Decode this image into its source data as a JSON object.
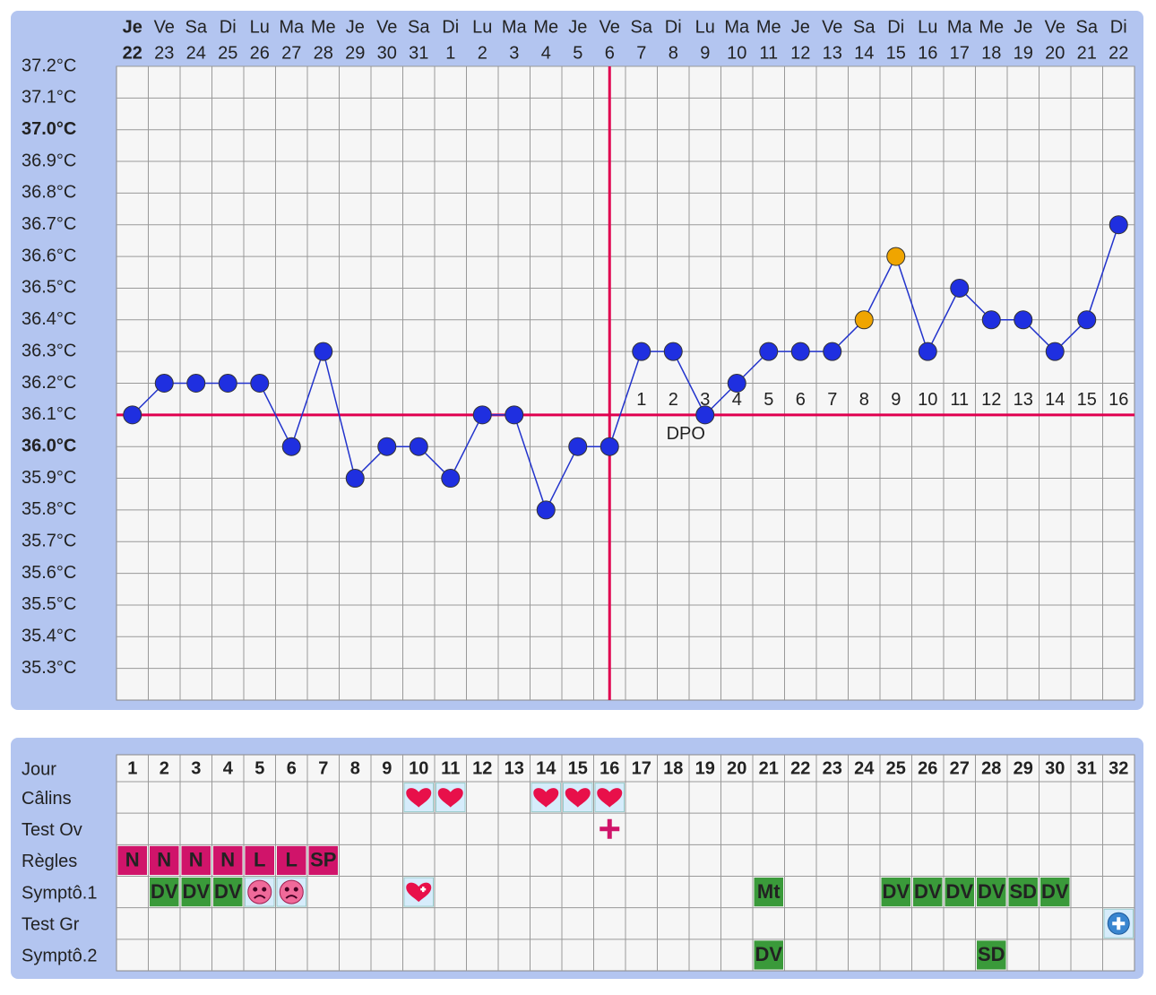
{
  "chart_data": {
    "type": "line",
    "weekdays": [
      "Je",
      "Ve",
      "Sa",
      "Di",
      "Lu",
      "Ma",
      "Me",
      "Je",
      "Ve",
      "Sa",
      "Di",
      "Lu",
      "Ma",
      "Me",
      "Je",
      "Ve",
      "Sa",
      "Di",
      "Lu",
      "Ma",
      "Me",
      "Je",
      "Ve",
      "Sa",
      "Di",
      "Lu",
      "Ma",
      "Me",
      "Je",
      "Ve",
      "Sa",
      "Di"
    ],
    "categories": [
      "22",
      "23",
      "24",
      "25",
      "26",
      "27",
      "28",
      "29",
      "30",
      "31",
      "1",
      "2",
      "3",
      "4",
      "5",
      "6",
      "7",
      "8",
      "9",
      "10",
      "11",
      "12",
      "13",
      "14",
      "15",
      "16",
      "17",
      "18",
      "19",
      "20",
      "21",
      "22"
    ],
    "category_colors": [
      "#e0004f",
      "#222",
      "#222",
      "#222",
      "#222",
      "#222",
      "#222",
      "#222",
      "#222",
      "#222",
      "#222",
      "#222",
      "#222",
      "#222",
      "#222",
      "#222",
      "#222",
      "#222",
      "#222",
      "#222",
      "#222",
      "#222",
      "#222",
      "#222",
      "#222",
      "#222",
      "#222",
      "#222",
      "#222",
      "#222",
      "#222",
      "#222"
    ],
    "series": [
      {
        "color": "#2233cc",
        "values": [
          36.1,
          36.2,
          36.2,
          36.2,
          36.2,
          36.0,
          36.3,
          35.9,
          36.0,
          36.0,
          35.9,
          36.1,
          36.1,
          35.8,
          36.0,
          36.0,
          36.3,
          36.3,
          36.1,
          36.2,
          36.3,
          36.3,
          36.3,
          36.4,
          36.6,
          36.3,
          36.5,
          36.4,
          36.4,
          36.3,
          36.4,
          36.7
        ],
        "marker_colors": [
          "#1f2fe0",
          "#1f2fe0",
          "#1f2fe0",
          "#1f2fe0",
          "#1f2fe0",
          "#1f2fe0",
          "#1f2fe0",
          "#1f2fe0",
          "#1f2fe0",
          "#1f2fe0",
          "#1f2fe0",
          "#1f2fe0",
          "#1f2fe0",
          "#1f2fe0",
          "#1f2fe0",
          "#1f2fe0",
          "#1f2fe0",
          "#1f2fe0",
          "#1f2fe0",
          "#1f2fe0",
          "#1f2fe0",
          "#1f2fe0",
          "#1f2fe0",
          "#f0a500",
          "#f0a500",
          "#1f2fe0",
          "#1f2fe0",
          "#1f2fe0",
          "#1f2fe0",
          "#1f2fe0",
          "#1f2fe0",
          "#1f2fe0"
        ]
      }
    ],
    "ylim": [
      35.2,
      37.2
    ],
    "yticks": [
      {
        "value": 35.3,
        "label": "35.3°C"
      },
      {
        "value": 35.4,
        "label": "35.4°C"
      },
      {
        "value": 35.5,
        "label": "35.5°C"
      },
      {
        "value": 35.6,
        "label": "35.6°C"
      },
      {
        "value": 35.7,
        "label": "35.7°C"
      },
      {
        "value": 35.8,
        "label": "35.8°C"
      },
      {
        "value": 35.9,
        "label": "35.9°C"
      },
      {
        "value": 36.0,
        "label": "36.0°C"
      },
      {
        "value": 36.1,
        "label": "36.1°C"
      },
      {
        "value": 36.2,
        "label": "36.2°C"
      },
      {
        "value": 36.3,
        "label": "36.3°C"
      },
      {
        "value": 36.4,
        "label": "36.4°C"
      },
      {
        "value": 36.5,
        "label": "36.5°C"
      },
      {
        "value": 36.6,
        "label": "36.6°C"
      },
      {
        "value": 36.7,
        "label": "36.7°C"
      },
      {
        "value": 36.8,
        "label": "36.8°C"
      },
      {
        "value": 36.9,
        "label": "36.9°C"
      },
      {
        "value": 37.0,
        "label": "37.0°C"
      },
      {
        "value": 37.1,
        "label": "37.1°C"
      },
      {
        "value": 37.2,
        "label": "37.2°C"
      }
    ],
    "ytick_colors": [
      "#333",
      "#333",
      "#333",
      "#333",
      "#333",
      "#333",
      "#333",
      "#e0004f",
      "#333",
      "#333",
      "#333",
      "#333",
      "#333",
      "#333",
      "#333",
      "#333",
      "#333",
      "#e0004f",
      "#333",
      "#333"
    ],
    "grid": true,
    "coverline": 36.1,
    "coverline_color": "#e0004f",
    "vline_index": 15,
    "dpo_labels": [
      null,
      null,
      null,
      null,
      null,
      null,
      null,
      null,
      null,
      null,
      null,
      null,
      null,
      null,
      null,
      null,
      "1",
      "2",
      "3",
      "4",
      "5",
      "6",
      "7",
      "8",
      "9",
      "10",
      "11",
      "12",
      "13",
      "14",
      "15",
      "16"
    ],
    "dpo_text": "DPO"
  },
  "table": {
    "rows": [
      {
        "label": "Jour",
        "cells": [
          "1",
          "2",
          "3",
          "4",
          "5",
          "6",
          "7",
          "8",
          "9",
          "10",
          "11",
          "12",
          "13",
          "14",
          "15",
          "16",
          "17",
          "18",
          "19",
          "20",
          "21",
          "22",
          "23",
          "24",
          "25",
          "26",
          "27",
          "28",
          "29",
          "30",
          "31",
          "32"
        ],
        "colors": [
          "#111",
          "#111",
          "#111",
          "#111",
          "#111",
          "#111",
          "#111",
          "#111",
          "#111",
          "#111",
          "#111",
          "#111",
          "#2233cc",
          "#2233cc",
          "#2233cc",
          "#e0004f",
          "#2233cc",
          "#2233cc",
          "#2233cc",
          "#111",
          "#111",
          "#111",
          "#111",
          "#111",
          "#111",
          "#111",
          "#111",
          "#111",
          "#111",
          "#111",
          "#111",
          "#111"
        ]
      },
      {
        "label": "Câlins"
      },
      {
        "label": "Test Ov"
      },
      {
        "label": "Règles",
        "cell_color": "#d0146a",
        "cells": [
          "N",
          "N",
          "N",
          "N",
          "L",
          "L",
          "SP",
          null,
          null,
          null,
          null,
          null,
          null,
          null,
          null,
          null,
          null,
          null,
          null,
          null,
          null,
          null,
          null,
          null,
          null,
          null,
          null,
          null,
          null,
          null,
          null,
          null
        ]
      },
      {
        "label": "Symptô.1",
        "cell_color": "#3a9a3a",
        "cells": [
          null,
          "DV",
          "DV",
          "DV",
          null,
          null,
          null,
          null,
          null,
          null,
          null,
          null,
          null,
          null,
          null,
          null,
          null,
          null,
          null,
          null,
          "Mt",
          null,
          null,
          null,
          "DV",
          "DV",
          "DV",
          "DV",
          "SD",
          "DV",
          null,
          null
        ]
      },
      {
        "label": "Test Gr"
      },
      {
        "label": "Symptô.2",
        "cell_color": "#3a9a3a",
        "cells": [
          null,
          null,
          null,
          null,
          null,
          null,
          null,
          null,
          null,
          null,
          null,
          null,
          null,
          null,
          null,
          null,
          null,
          null,
          null,
          null,
          "DV",
          null,
          null,
          null,
          null,
          null,
          null,
          "SD",
          null,
          null,
          null,
          null
        ]
      }
    ]
  }
}
